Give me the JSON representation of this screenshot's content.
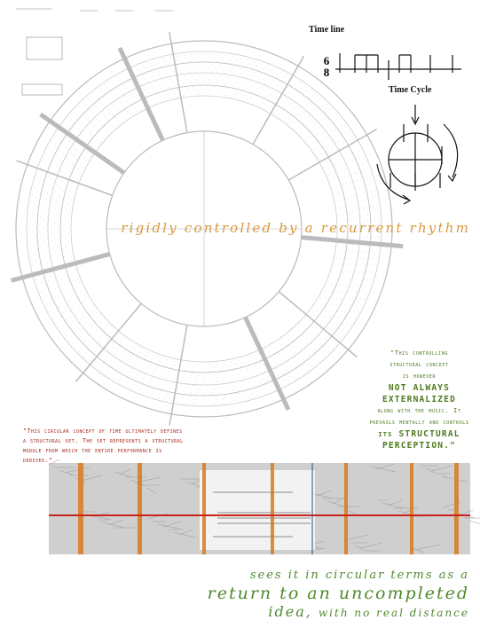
{
  "time_line": {
    "title": "Time line",
    "time_signature": [
      "6",
      "8"
    ]
  },
  "time_cycle": {
    "title": "Time Cycle"
  },
  "headline": "rigidly controlled by a recurrent rhythm",
  "quote_right": [
    "\"This controlling",
    "structural concept",
    "is however",
    "NOT ALWAYS",
    "EXTERNALIZED",
    "along with the music. It",
    "prevails mentally and controls",
    "its STRUCTURAL",
    "PERCEPTION.\""
  ],
  "quote_left": [
    "\"This circular concept of time ultimately defines",
    "a structural set. The set represents a structural",
    "module from which the entire performance is",
    "derived.\""
  ],
  "closing": {
    "line1": "sees it in circular terms as a",
    "line2": "return to an uncompleted",
    "line3_main": "idea,",
    "line3_rest": "with no real distance"
  }
}
